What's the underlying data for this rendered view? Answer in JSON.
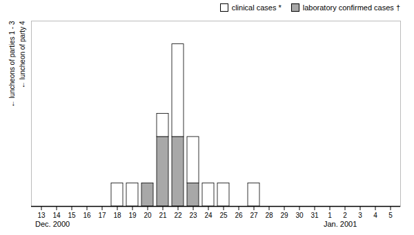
{
  "chart_data": {
    "type": "bar",
    "stacked": true,
    "categories": [
      "13",
      "14",
      "15",
      "16",
      "17",
      "18",
      "19",
      "20",
      "21",
      "22",
      "23",
      "24",
      "25",
      "26",
      "27",
      "28",
      "29",
      "30",
      "31",
      "1",
      "2",
      "3",
      "4",
      "5"
    ],
    "series": [
      {
        "name": "laboratory confirmed cases †",
        "color": "#a8a8a8",
        "values": [
          0,
          0,
          0,
          0,
          0,
          0,
          0,
          1,
          3,
          3,
          1,
          0,
          0,
          0,
          0,
          0,
          0,
          0,
          0,
          0,
          0,
          0,
          0,
          0
        ]
      },
      {
        "name": "clinical cases *",
        "color": "#ffffff",
        "values": [
          0,
          0,
          0,
          0,
          0,
          1,
          1,
          0,
          1,
          4,
          2,
          1,
          1,
          0,
          1,
          0,
          0,
          0,
          0,
          0,
          0,
          0,
          0,
          0
        ]
      }
    ],
    "ylim": [
      0,
      8
    ],
    "tick_labels": "x",
    "grid": false,
    "legend": "upper right",
    "annotations": [
      {
        "text": "Dec. 2000",
        "x": "13"
      },
      {
        "text": "Jan. 2001",
        "x": "1"
      },
      {
        "text": "← luncheons of parties 1 - 3"
      },
      {
        "text": "← luncheon of party 4"
      }
    ]
  }
}
